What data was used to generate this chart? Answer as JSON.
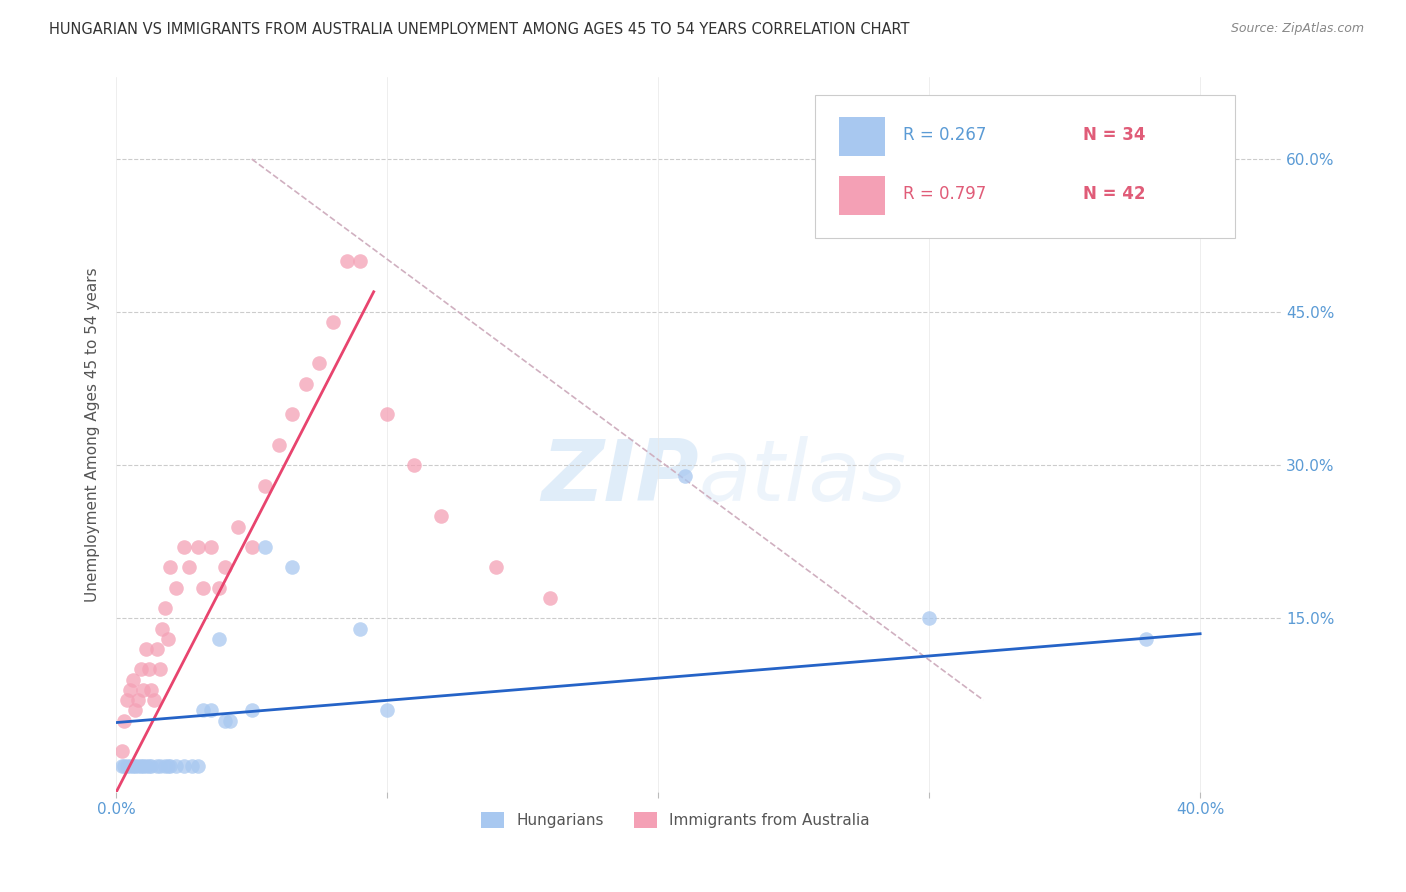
{
  "title": "HUNGARIAN VS IMMIGRANTS FROM AUSTRALIA UNEMPLOYMENT AMONG AGES 45 TO 54 YEARS CORRELATION CHART",
  "source": "Source: ZipAtlas.com",
  "ylabel": "Unemployment Among Ages 45 to 54 years",
  "ytick_labels": [
    "60.0%",
    "45.0%",
    "30.0%",
    "15.0%"
  ],
  "ytick_values": [
    0.6,
    0.45,
    0.3,
    0.15
  ],
  "xtick_labels_show": [
    "0.0%",
    "40.0%"
  ],
  "xtick_values_show": [
    0.0,
    0.4
  ],
  "xlim": [
    0.0,
    0.43
  ],
  "ylim": [
    -0.02,
    0.68
  ],
  "legend_blue_R": "R = 0.267",
  "legend_blue_N": "N = 34",
  "legend_pink_R": "R = 0.797",
  "legend_pink_N": "N = 42",
  "legend_label_blue": "Hungarians",
  "legend_label_pink": "Immigrants from Australia",
  "blue_color": "#a8c8f0",
  "pink_color": "#f4a0b5",
  "trendline_blue_color": "#2563c7",
  "trendline_pink_color": "#e8446e",
  "trendline_diag_color": "#d0b0c0",
  "watermark_zip": "ZIP",
  "watermark_atlas": "atlas",
  "blue_scatter_x": [
    0.002,
    0.003,
    0.004,
    0.005,
    0.006,
    0.007,
    0.008,
    0.009,
    0.01,
    0.011,
    0.012,
    0.013,
    0.015,
    0.016,
    0.018,
    0.019,
    0.02,
    0.022,
    0.025,
    0.028,
    0.03,
    0.032,
    0.035,
    0.038,
    0.04,
    0.042,
    0.05,
    0.055,
    0.065,
    0.09,
    0.1,
    0.21,
    0.3,
    0.38
  ],
  "blue_scatter_y": [
    0.005,
    0.005,
    0.005,
    0.005,
    0.005,
    0.005,
    0.005,
    0.005,
    0.005,
    0.005,
    0.005,
    0.005,
    0.005,
    0.005,
    0.005,
    0.005,
    0.005,
    0.005,
    0.005,
    0.005,
    0.005,
    0.06,
    0.06,
    0.13,
    0.05,
    0.05,
    0.06,
    0.22,
    0.2,
    0.14,
    0.06,
    0.29,
    0.15,
    0.13
  ],
  "pink_scatter_x": [
    0.002,
    0.003,
    0.004,
    0.005,
    0.006,
    0.007,
    0.008,
    0.009,
    0.01,
    0.011,
    0.012,
    0.013,
    0.014,
    0.015,
    0.016,
    0.017,
    0.018,
    0.019,
    0.02,
    0.022,
    0.025,
    0.027,
    0.03,
    0.032,
    0.035,
    0.038,
    0.04,
    0.045,
    0.05,
    0.055,
    0.06,
    0.065,
    0.07,
    0.075,
    0.08,
    0.085,
    0.09,
    0.1,
    0.11,
    0.12,
    0.14,
    0.16
  ],
  "pink_scatter_y": [
    0.02,
    0.05,
    0.07,
    0.08,
    0.09,
    0.06,
    0.07,
    0.1,
    0.08,
    0.12,
    0.1,
    0.08,
    0.07,
    0.12,
    0.1,
    0.14,
    0.16,
    0.13,
    0.2,
    0.18,
    0.22,
    0.2,
    0.22,
    0.18,
    0.22,
    0.18,
    0.2,
    0.24,
    0.22,
    0.28,
    0.32,
    0.35,
    0.38,
    0.4,
    0.44,
    0.5,
    0.5,
    0.35,
    0.3,
    0.25,
    0.2,
    0.17
  ],
  "blue_trend_x": [
    0.0,
    0.4
  ],
  "blue_trend_y": [
    0.048,
    0.135
  ],
  "pink_trend_x": [
    0.0,
    0.095
  ],
  "pink_trend_y": [
    -0.02,
    0.47
  ],
  "diag_trend_x": [
    0.05,
    0.32
  ],
  "diag_trend_y": [
    0.6,
    0.07
  ]
}
